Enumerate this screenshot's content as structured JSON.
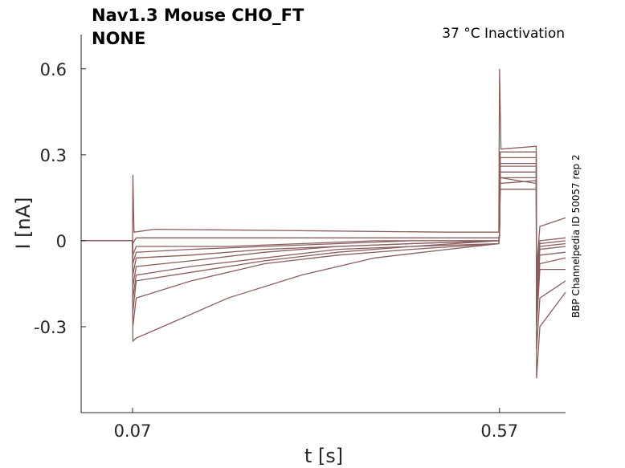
{
  "chart_data": {
    "type": "line",
    "title_line1": "Nav1.3  Mouse  CHO_FT",
    "title_line2": "NONE",
    "annotation": "37 °C  Inactivation",
    "side_text": "BBP Channelpedia ID 50057 rep 2",
    "xlabel": "t [s]",
    "ylabel": "I [nA]",
    "xlim": [
      0.0,
      0.66
    ],
    "ylim": [
      -0.6,
      0.72
    ],
    "xticks": [
      0.07,
      0.57
    ],
    "xtick_labels": [
      "0.07",
      "0.57"
    ],
    "yticks": [
      -0.3,
      0,
      0.3,
      0.6
    ],
    "ytick_labels": [
      "-0.3",
      "0",
      "0.3",
      "0.6"
    ],
    "line_color": "#8b5e5e",
    "grid": false,
    "series": [
      {
        "values": [
          [
            0,
            0
          ],
          [
            0.07,
            0
          ],
          [
            0.0705,
            -0.35
          ],
          [
            0.075,
            -0.34
          ],
          [
            0.12,
            -0.29
          ],
          [
            0.2,
            -0.2
          ],
          [
            0.3,
            -0.12
          ],
          [
            0.4,
            -0.06
          ],
          [
            0.5,
            -0.03
          ],
          [
            0.569,
            -0.01
          ],
          [
            0.57,
            0.03
          ],
          [
            0.571,
            0.22
          ],
          [
            0.62,
            0.2
          ],
          [
            0.6205,
            -0.48
          ],
          [
            0.625,
            -0.3
          ],
          [
            0.66,
            -0.18
          ]
        ]
      },
      {
        "values": [
          [
            0,
            0
          ],
          [
            0.07,
            0
          ],
          [
            0.0705,
            -0.3
          ],
          [
            0.075,
            -0.2
          ],
          [
            0.15,
            -0.14
          ],
          [
            0.25,
            -0.08
          ],
          [
            0.35,
            -0.05
          ],
          [
            0.45,
            -0.03
          ],
          [
            0.569,
            -0.01
          ],
          [
            0.57,
            0.02
          ],
          [
            0.571,
            0.2
          ],
          [
            0.62,
            0.21
          ],
          [
            0.6205,
            -0.38
          ],
          [
            0.625,
            -0.2
          ],
          [
            0.66,
            -0.14
          ]
        ]
      },
      {
        "values": [
          [
            0,
            0
          ],
          [
            0.07,
            0
          ],
          [
            0.0705,
            -0.25
          ],
          [
            0.075,
            -0.14
          ],
          [
            0.15,
            -0.11
          ],
          [
            0.25,
            -0.07
          ],
          [
            0.35,
            -0.04
          ],
          [
            0.45,
            -0.02
          ],
          [
            0.569,
            -0.01
          ],
          [
            0.57,
            0.02
          ],
          [
            0.571,
            0.18
          ],
          [
            0.62,
            0.18
          ],
          [
            0.6205,
            -0.3
          ],
          [
            0.625,
            -0.1
          ],
          [
            0.66,
            -0.1
          ]
        ]
      },
      {
        "values": [
          [
            0,
            0
          ],
          [
            0.07,
            0
          ],
          [
            0.0705,
            -0.2
          ],
          [
            0.075,
            -0.12
          ],
          [
            0.15,
            -0.09
          ],
          [
            0.25,
            -0.06
          ],
          [
            0.35,
            -0.03
          ],
          [
            0.45,
            -0.02
          ],
          [
            0.569,
            0
          ],
          [
            0.57,
            0.02
          ],
          [
            0.571,
            0.22
          ],
          [
            0.62,
            0.22
          ],
          [
            0.6205,
            -0.25
          ],
          [
            0.625,
            -0.08
          ],
          [
            0.66,
            -0.06
          ]
        ]
      },
      {
        "values": [
          [
            0,
            0
          ],
          [
            0.07,
            0
          ],
          [
            0.0705,
            -0.16
          ],
          [
            0.075,
            -0.09
          ],
          [
            0.15,
            -0.07
          ],
          [
            0.25,
            -0.04
          ],
          [
            0.35,
            -0.02
          ],
          [
            0.45,
            -0.01
          ],
          [
            0.569,
            0
          ],
          [
            0.57,
            0.02
          ],
          [
            0.571,
            0.24
          ],
          [
            0.62,
            0.24
          ],
          [
            0.6205,
            -0.22
          ],
          [
            0.625,
            -0.05
          ],
          [
            0.66,
            -0.04
          ]
        ]
      },
      {
        "values": [
          [
            0,
            0
          ],
          [
            0.07,
            0
          ],
          [
            0.0705,
            -0.12
          ],
          [
            0.075,
            -0.06
          ],
          [
            0.15,
            -0.05
          ],
          [
            0.25,
            -0.03
          ],
          [
            0.35,
            -0.02
          ],
          [
            0.45,
            -0.01
          ],
          [
            0.569,
            0
          ],
          [
            0.57,
            0.02
          ],
          [
            0.571,
            0.26
          ],
          [
            0.62,
            0.26
          ],
          [
            0.6205,
            -0.2
          ],
          [
            0.625,
            -0.03
          ],
          [
            0.66,
            -0.02
          ]
        ]
      },
      {
        "values": [
          [
            0,
            0
          ],
          [
            0.07,
            0
          ],
          [
            0.0705,
            -0.08
          ],
          [
            0.075,
            -0.04
          ],
          [
            0.15,
            -0.03
          ],
          [
            0.25,
            -0.02
          ],
          [
            0.35,
            -0.01
          ],
          [
            0.45,
            0
          ],
          [
            0.569,
            0
          ],
          [
            0.57,
            0.02
          ],
          [
            0.571,
            0.27
          ],
          [
            0.62,
            0.27
          ],
          [
            0.6205,
            -0.18
          ],
          [
            0.625,
            -0.02
          ],
          [
            0.66,
            -0.01
          ]
        ]
      },
      {
        "values": [
          [
            0,
            0
          ],
          [
            0.07,
            0
          ],
          [
            0.0705,
            -0.05
          ],
          [
            0.075,
            -0.02
          ],
          [
            0.2,
            -0.02
          ],
          [
            0.3,
            -0.01
          ],
          [
            0.4,
            0
          ],
          [
            0.569,
            0
          ],
          [
            0.57,
            0.02
          ],
          [
            0.571,
            0.29
          ],
          [
            0.62,
            0.29
          ],
          [
            0.6205,
            -0.15
          ],
          [
            0.625,
            -0.01
          ],
          [
            0.66,
            0
          ]
        ]
      },
      {
        "values": [
          [
            0,
            0
          ],
          [
            0.07,
            0
          ],
          [
            0.0705,
            0.23
          ],
          [
            0.072,
            0.03
          ],
          [
            0.1,
            0.04
          ],
          [
            0.3,
            0.035
          ],
          [
            0.5,
            0.03
          ],
          [
            0.569,
            0.03
          ],
          [
            0.57,
            0.6
          ],
          [
            0.572,
            0.32
          ],
          [
            0.62,
            0.33
          ],
          [
            0.6205,
            -0.1
          ],
          [
            0.625,
            0.05
          ],
          [
            0.66,
            0.08
          ]
        ]
      },
      {
        "values": [
          [
            0,
            0
          ],
          [
            0.07,
            0
          ],
          [
            0.0705,
            -0.01
          ],
          [
            0.075,
            0.01
          ],
          [
            0.3,
            0.01
          ],
          [
            0.569,
            0.01
          ],
          [
            0.57,
            0.02
          ],
          [
            0.571,
            0.31
          ],
          [
            0.62,
            0.31
          ],
          [
            0.6205,
            -0.12
          ],
          [
            0.625,
            0
          ],
          [
            0.66,
            0.01
          ]
        ]
      }
    ]
  }
}
